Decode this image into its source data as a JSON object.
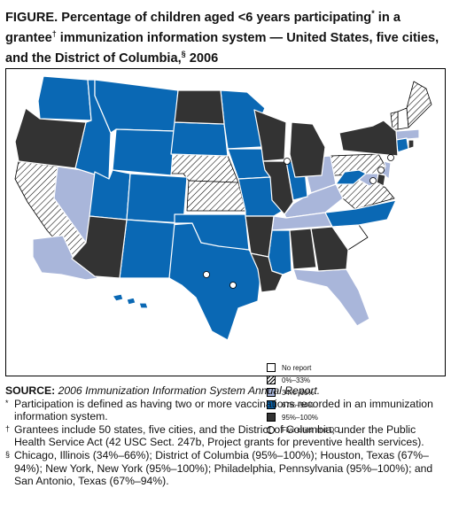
{
  "title": {
    "part1": "FIGURE. Percentage of children aged <6 years participating",
    "mark1": "*",
    "part2": " in a grantee",
    "mark2": "†",
    "part3": " immunization information system — United States, five cities, and the District of Columbia,",
    "mark3": "§",
    "part4": " 2006"
  },
  "colors": {
    "no_report": "#ffffff",
    "pct_0_33": "hatched",
    "pct_34_66": "#a9b6da",
    "pct_67_94": "#0a68b4",
    "pct_95_100": "#333333"
  },
  "legend": [
    {
      "label": "No report",
      "key": "none"
    },
    {
      "label": "0%–33%",
      "key": "hatch"
    },
    {
      "label": "34%–66%",
      "key": "light"
    },
    {
      "label": "67%–94%",
      "key": "blue"
    },
    {
      "label": "95%–100%",
      "key": "dark"
    },
    {
      "label": "Five cities and DC",
      "key": "dot"
    }
  ],
  "map": {
    "categories": {
      "none": [
        "NH",
        "SC"
      ],
      "hatch": [
        "CA",
        "NE",
        "KS",
        "PA",
        "VA",
        "ME",
        "VT"
      ],
      "light": [
        "NV",
        "OH",
        "KY",
        "TN",
        "FL",
        "MA",
        "AK",
        "NJ",
        "MD"
      ],
      "blue": [
        "WA",
        "ID",
        "MT",
        "WY",
        "UT",
        "CO",
        "SD",
        "TX",
        "OK",
        "NM",
        "MN",
        "IA",
        "MO",
        "MS",
        "IN",
        "WV",
        "NC",
        "CT",
        "HI"
      ],
      "dark": [
        "OR",
        "ND",
        "AZ",
        "WI",
        "MI",
        "IL",
        "AR",
        "LA",
        "AL",
        "GA",
        "NY",
        "DE",
        "RI"
      ]
    },
    "cities": [
      "Chicago",
      "District of Columbia",
      "Houston",
      "New York",
      "Philadelphia",
      "San Antonio"
    ]
  },
  "source": {
    "label": "SOURCE:",
    "text": "2006 Immunization Information System Annual Report."
  },
  "footnotes": [
    {
      "mark": "*",
      "text": "Participation is defined as having two or more vaccinations recorded in an immunization information system."
    },
    {
      "mark": "†",
      "text": "Grantees include 50 states, five cities, and the District of Columbia, under the Public Health Service Act (42 USC Sect. 247b, Project grants for preventive health services)."
    },
    {
      "mark": "§",
      "text": "Chicago, Illinois (34%–66%); District of Columbia (95%–100%); Houston, Texas (67%–94%); New York, New York (95%–100%); Philadelphia, Pennsylvania (95%–100%); and San Antonio, Texas (67%–94%)."
    }
  ]
}
